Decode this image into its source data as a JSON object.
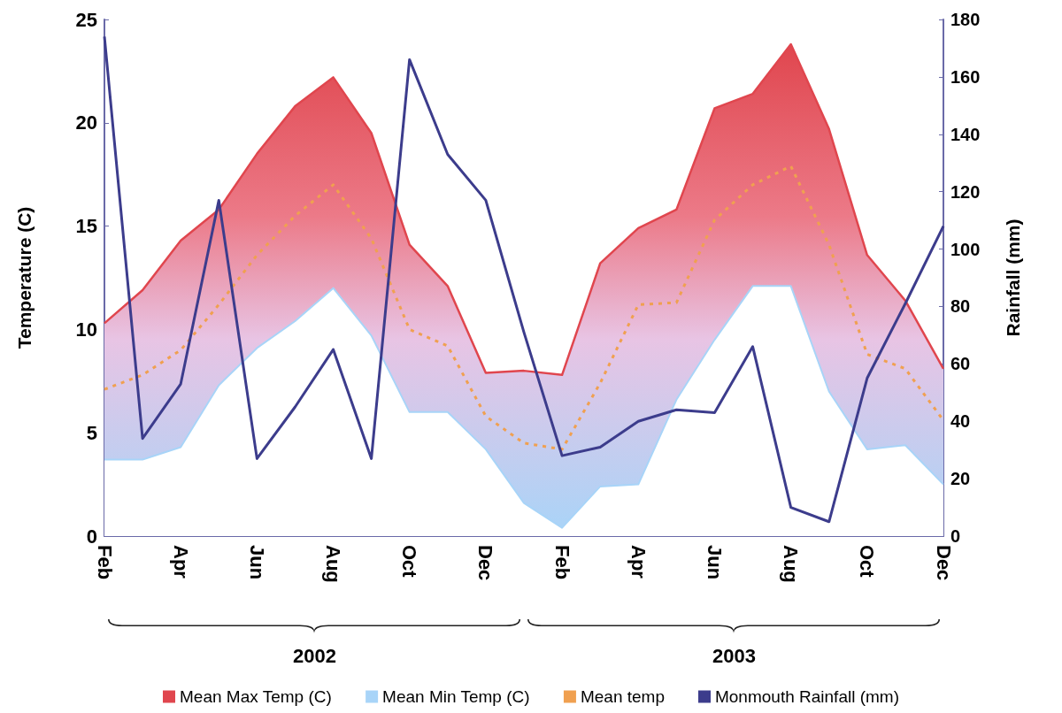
{
  "chart_data": {
    "type": "line",
    "xlabel": null,
    "ylabel": "Temperature (C)",
    "y2label": "Rainfall (mm)",
    "categories": [
      "Feb",
      null,
      "Apr",
      null,
      "Jun",
      null,
      "Aug",
      null,
      "Oct",
      null,
      "Dec",
      null,
      "Feb",
      null,
      "Apr",
      null,
      "Jun",
      null,
      "Aug",
      null,
      "Oct",
      null,
      "Dec"
    ],
    "series": [
      {
        "name": "Mean Max Temp (C)",
        "type": "area",
        "color": "#e0464e",
        "values": [
          10.3,
          11.9,
          14.3,
          15.8,
          18.5,
          20.8,
          22.2,
          19.5,
          14.1,
          12.1,
          7.9,
          8.0,
          7.8,
          13.2,
          14.9,
          15.8,
          20.7,
          21.4,
          23.8,
          19.7,
          13.6,
          11.4,
          8.1
        ]
      },
      {
        "name": "Mean Min Temp (C)",
        "type": "area",
        "color": "#a8d4f8",
        "values": [
          3.7,
          3.7,
          4.3,
          7.3,
          9.1,
          10.4,
          12.0,
          9.7,
          6.0,
          6.0,
          4.2,
          1.6,
          0.4,
          2.4,
          2.5,
          6.6,
          9.5,
          12.1,
          12.1,
          7.0,
          4.2,
          4.4,
          2.5
        ]
      },
      {
        "name": "Mean temp",
        "color": "#f0a050",
        "line_style": "dotted",
        "values": [
          7.1,
          7.8,
          9.0,
          11.2,
          13.6,
          15.5,
          17.0,
          14.4,
          10.0,
          9.2,
          5.8,
          4.5,
          4.2,
          7.4,
          11.2,
          11.3,
          15.3,
          17.0,
          17.9,
          14.1,
          8.8,
          8.1,
          5.6
        ]
      },
      {
        "name": "Monmouth Rainfall (mm)",
        "axis": "y2",
        "color": "#3c3c8c",
        "line_style": "solid",
        "values": [
          174,
          34,
          53,
          117,
          27,
          45,
          65,
          27,
          166,
          133,
          117,
          71,
          28,
          31,
          40,
          44,
          43,
          66,
          10,
          5,
          55,
          81,
          108
        ]
      }
    ],
    "ylim": [
      0,
      25
    ],
    "yticks": [
      0,
      5,
      10,
      15,
      20,
      25
    ],
    "y2lim": [
      0,
      180
    ],
    "y2ticks": [
      0,
      20,
      40,
      60,
      80,
      100,
      120,
      140,
      160,
      180
    ],
    "annotations": [
      "2002",
      "2003"
    ],
    "grid": false,
    "legend": "bottom",
    "marker": "none"
  }
}
